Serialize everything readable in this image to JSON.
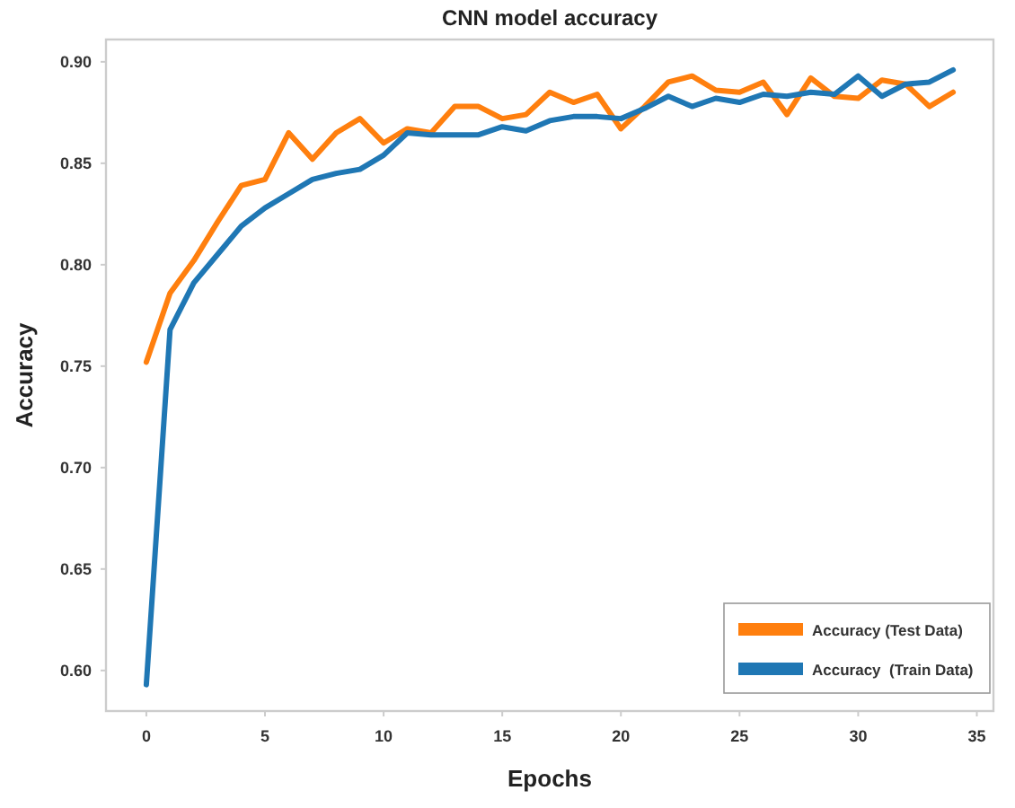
{
  "chart_data": {
    "type": "line",
    "title": "CNN model accuracy",
    "xlabel": "Epochs",
    "ylabel": "Accuracy",
    "x": [
      0,
      1,
      2,
      3,
      4,
      5,
      6,
      7,
      8,
      9,
      10,
      11,
      12,
      13,
      14,
      15,
      16,
      17,
      18,
      19,
      20,
      21,
      22,
      23,
      24,
      25,
      26,
      27,
      28,
      29,
      30,
      31,
      32,
      33,
      34
    ],
    "series": [
      {
        "name": "Accuracy (Test Data)",
        "color": "#ff7f0e",
        "values": [
          0.752,
          0.786,
          0.802,
          0.821,
          0.839,
          0.842,
          0.865,
          0.852,
          0.865,
          0.872,
          0.86,
          0.867,
          0.865,
          0.878,
          0.878,
          0.872,
          0.874,
          0.885,
          0.88,
          0.884,
          0.867,
          0.878,
          0.89,
          0.893,
          0.886,
          0.885,
          0.89,
          0.874,
          0.892,
          0.883,
          0.882,
          0.891,
          0.889,
          0.878,
          0.885
        ]
      },
      {
        "name": "Accuracy  (Train Data)",
        "color": "#1f77b4",
        "values": [
          0.593,
          0.768,
          0.791,
          0.805,
          0.819,
          0.828,
          0.835,
          0.842,
          0.845,
          0.847,
          0.854,
          0.865,
          0.864,
          0.864,
          0.864,
          0.868,
          0.866,
          0.871,
          0.873,
          0.873,
          0.872,
          0.877,
          0.883,
          0.878,
          0.882,
          0.88,
          0.884,
          0.883,
          0.885,
          0.884,
          0.893,
          0.883,
          0.889,
          0.89,
          0.896
        ]
      }
    ],
    "xlim": [
      -1.7,
      35.7
    ],
    "ylim": [
      0.58,
      0.911
    ],
    "xticks": [
      0,
      5,
      10,
      15,
      20,
      25,
      30,
      35
    ],
    "yticks": [
      {
        "value": 0.6,
        "label": "0.60"
      },
      {
        "value": 0.65,
        "label": "0.65"
      },
      {
        "value": 0.7,
        "label": "0.70"
      },
      {
        "value": 0.75,
        "label": "0.75"
      },
      {
        "value": 0.8,
        "label": "0.80"
      },
      {
        "value": 0.85,
        "label": "0.85"
      },
      {
        "value": 0.9,
        "label": "0.90"
      }
    ],
    "legend": "bottom right",
    "grid": false,
    "line_style": "solid",
    "marker": "none"
  }
}
